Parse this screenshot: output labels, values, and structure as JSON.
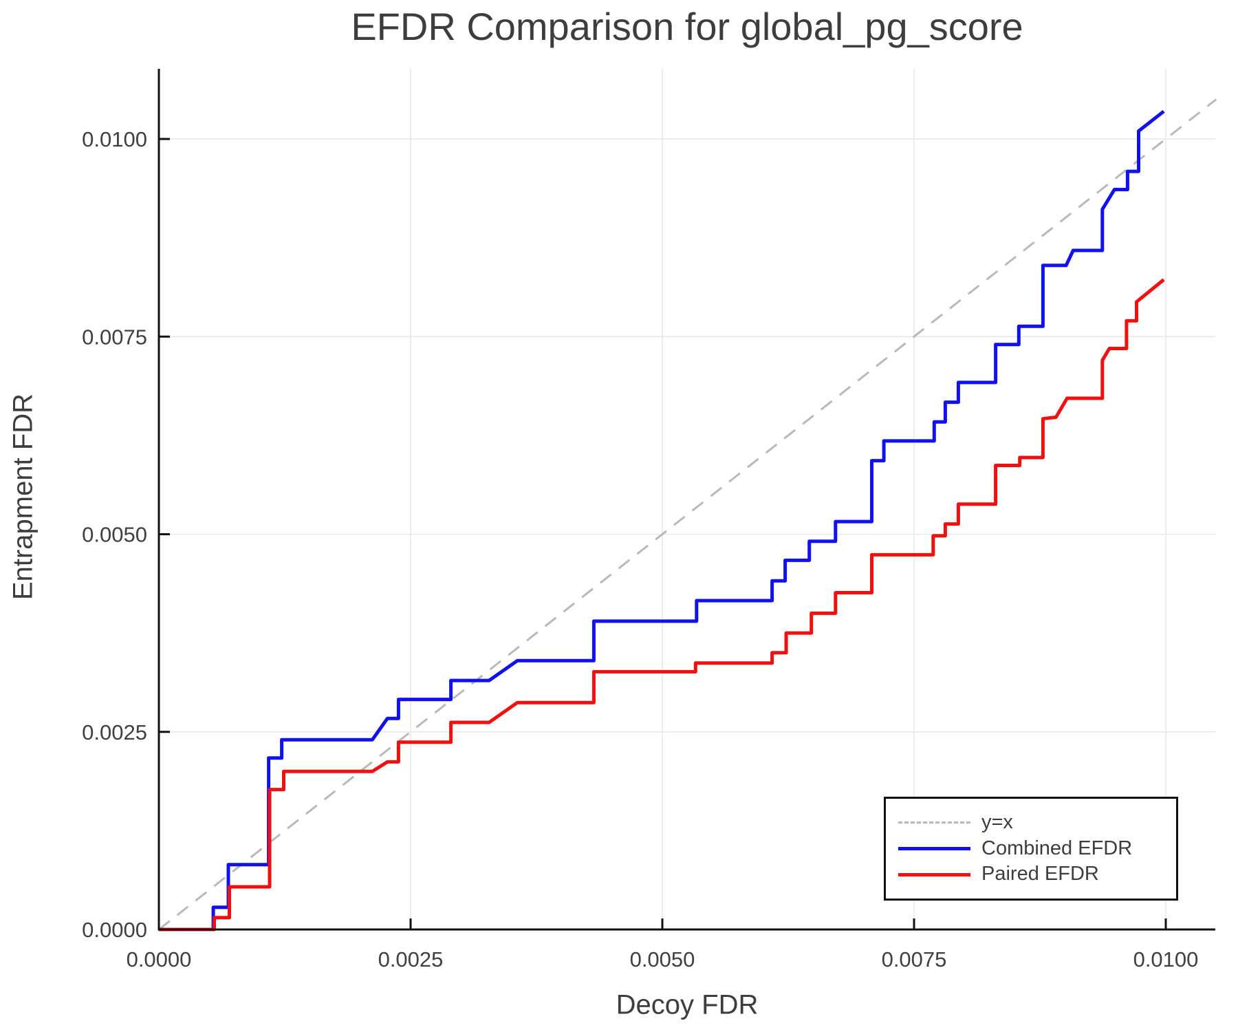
{
  "title": "EFDR Comparison for global_pg_score",
  "axes": {
    "xlabel": "Decoy FDR",
    "ylabel": "Entrapment FDR",
    "x_tick_labels": [
      "0.0000",
      "0.0025",
      "0.0050",
      "0.0075",
      "0.0100"
    ],
    "y_tick_labels": [
      "0.0000",
      "0.0025",
      "0.0050",
      "0.0075",
      "0.0100"
    ]
  },
  "legend": {
    "items": [
      {
        "label": "y=x",
        "color": "#b9b9b9",
        "style": "dashed"
      },
      {
        "label": "Combined EFDR",
        "color": "#1010f0",
        "style": "solid"
      },
      {
        "label": "Paired EFDR",
        "color": "#f01010",
        "style": "solid"
      }
    ]
  },
  "colors": {
    "grid": "#e7e7e7",
    "axis": "#111111",
    "text": "#404040",
    "identity": "#b9b9b9",
    "combined": "#1010f0",
    "paired": "#f01010"
  },
  "chart_data": {
    "type": "line",
    "title": "EFDR Comparison for global_pg_score",
    "xlabel": "Decoy FDR",
    "ylabel": "Entrapment FDR",
    "xlim": [
      0,
      0.0105
    ],
    "ylim": [
      0,
      0.0109
    ],
    "grid": true,
    "legend_position": "lower right",
    "x_tick_values": [
      0,
      0.0025,
      0.005,
      0.0075,
      0.01
    ],
    "y_tick_values": [
      0,
      0.0025,
      0.005,
      0.0075,
      0.01
    ],
    "series": [
      {
        "id": "identity",
        "name": "y=x",
        "color": "#b9b9b9",
        "width": 3,
        "dash": "20 14",
        "points": [
          [
            0,
            0
          ],
          [
            0.0105,
            0.0105
          ]
        ]
      },
      {
        "id": "combined-efdr",
        "name": "Combined EFDR",
        "color": "#1010f0",
        "width": 5,
        "points": [
          [
            0,
            0
          ],
          [
            0.00054,
            0
          ],
          [
            0.00054,
            0.00028
          ],
          [
            0.00069,
            0.00028
          ],
          [
            0.00069,
            0.00082
          ],
          [
            0.00109,
            0.00082
          ],
          [
            0.00109,
            0.00217
          ],
          [
            0.00122,
            0.00217
          ],
          [
            0.00122,
            0.0024
          ],
          [
            0.00212,
            0.0024
          ],
          [
            0.00227,
            0.00267
          ],
          [
            0.00238,
            0.00267
          ],
          [
            0.00238,
            0.00291
          ],
          [
            0.0029,
            0.00291
          ],
          [
            0.0029,
            0.00315
          ],
          [
            0.00328,
            0.00315
          ],
          [
            0.00356,
            0.0034
          ],
          [
            0.00432,
            0.0034
          ],
          [
            0.00432,
            0.0039
          ],
          [
            0.00534,
            0.0039
          ],
          [
            0.00534,
            0.00416
          ],
          [
            0.00609,
            0.00416
          ],
          [
            0.00609,
            0.00441
          ],
          [
            0.00622,
            0.00441
          ],
          [
            0.00622,
            0.00467
          ],
          [
            0.00646,
            0.00467
          ],
          [
            0.00646,
            0.00491
          ],
          [
            0.00672,
            0.00491
          ],
          [
            0.00672,
            0.00516
          ],
          [
            0.00708,
            0.00516
          ],
          [
            0.00708,
            0.00593
          ],
          [
            0.0072,
            0.00593
          ],
          [
            0.0072,
            0.00618
          ],
          [
            0.0077,
            0.00618
          ],
          [
            0.0077,
            0.00642
          ],
          [
            0.00781,
            0.00642
          ],
          [
            0.00781,
            0.00667
          ],
          [
            0.00794,
            0.00667
          ],
          [
            0.00794,
            0.00692
          ],
          [
            0.00831,
            0.00692
          ],
          [
            0.00831,
            0.0074
          ],
          [
            0.00854,
            0.0074
          ],
          [
            0.00854,
            0.00763
          ],
          [
            0.00878,
            0.00763
          ],
          [
            0.00878,
            0.0084
          ],
          [
            0.00901,
            0.0084
          ],
          [
            0.00908,
            0.00859
          ],
          [
            0.00937,
            0.00859
          ],
          [
            0.00937,
            0.00911
          ],
          [
            0.00949,
            0.00936
          ],
          [
            0.00962,
            0.00936
          ],
          [
            0.00962,
            0.00959
          ],
          [
            0.00973,
            0.00959
          ],
          [
            0.00973,
            0.0101
          ],
          [
            0.00998,
            0.01035
          ]
        ]
      },
      {
        "id": "paired-efdr",
        "name": "Paired EFDR",
        "color": "#f01010",
        "width": 5,
        "points": [
          [
            0,
            0
          ],
          [
            0.00055,
            0
          ],
          [
            0.00055,
            0.00015
          ],
          [
            0.0007,
            0.00015
          ],
          [
            0.0007,
            0.00054
          ],
          [
            0.0011,
            0.00054
          ],
          [
            0.0011,
            0.00177
          ],
          [
            0.00124,
            0.00177
          ],
          [
            0.00124,
            0.002
          ],
          [
            0.00212,
            0.002
          ],
          [
            0.00227,
            0.00212
          ],
          [
            0.00238,
            0.00212
          ],
          [
            0.00238,
            0.00237
          ],
          [
            0.0029,
            0.00237
          ],
          [
            0.0029,
            0.00262
          ],
          [
            0.00328,
            0.00262
          ],
          [
            0.00356,
            0.00287
          ],
          [
            0.00432,
            0.00287
          ],
          [
            0.00432,
            0.00326
          ],
          [
            0.00533,
            0.00326
          ],
          [
            0.00533,
            0.00337
          ],
          [
            0.00609,
            0.00337
          ],
          [
            0.00609,
            0.0035
          ],
          [
            0.00623,
            0.0035
          ],
          [
            0.00623,
            0.00375
          ],
          [
            0.00648,
            0.00375
          ],
          [
            0.00648,
            0.004
          ],
          [
            0.00672,
            0.004
          ],
          [
            0.00672,
            0.00426
          ],
          [
            0.00708,
            0.00426
          ],
          [
            0.00708,
            0.00474
          ],
          [
            0.00769,
            0.00474
          ],
          [
            0.00769,
            0.00498
          ],
          [
            0.00781,
            0.00498
          ],
          [
            0.00781,
            0.00513
          ],
          [
            0.00794,
            0.00513
          ],
          [
            0.00794,
            0.00538
          ],
          [
            0.00831,
            0.00538
          ],
          [
            0.00831,
            0.00587
          ],
          [
            0.00855,
            0.00587
          ],
          [
            0.00855,
            0.00597
          ],
          [
            0.00878,
            0.00597
          ],
          [
            0.00878,
            0.00646
          ],
          [
            0.00891,
            0.00648
          ],
          [
            0.00902,
            0.00672
          ],
          [
            0.00937,
            0.00672
          ],
          [
            0.00937,
            0.0072
          ],
          [
            0.00944,
            0.00735
          ],
          [
            0.00961,
            0.00735
          ],
          [
            0.00961,
            0.0077
          ],
          [
            0.00971,
            0.0077
          ],
          [
            0.00971,
            0.00794
          ],
          [
            0.00998,
            0.00822
          ]
        ]
      }
    ]
  }
}
